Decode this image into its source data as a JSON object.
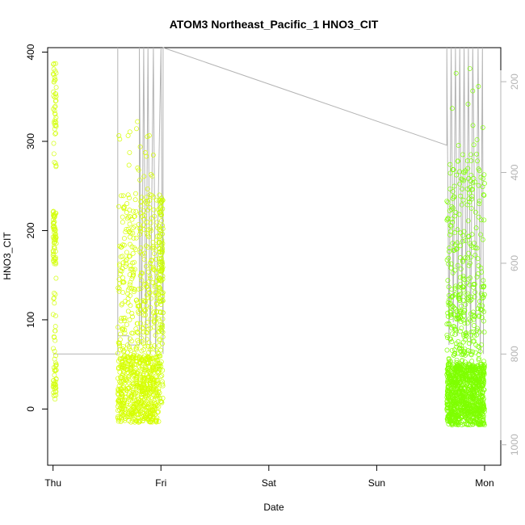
{
  "chart_data": {
    "type": "scatter",
    "title": "ATOM3 Northeast_Pacific_1 HNO3_CIT",
    "xlabel": "Date",
    "ylabel": "HNO3_CIT",
    "x_ticks": [
      "Thu",
      "Fri",
      "Sat",
      "Sun",
      "Mon"
    ],
    "x_range_days": [
      -0.05,
      4.15
    ],
    "ylim": [
      -63,
      405
    ],
    "y_ticks": [
      0,
      100,
      200,
      300,
      400
    ],
    "y2_ticks": [
      200,
      400,
      600,
      800,
      1000
    ],
    "y2lim": [
      125,
      1045
    ],
    "grid": false,
    "colors": {
      "early": "#ccff00",
      "late": "#7fff00",
      "pressure_line": "#b4b4b4",
      "axes": "#000000"
    },
    "clusters": [
      {
        "name": "",
        "x_start": 0.0,
        "x_end": 0.03,
        "color": "#d4ff10",
        "n": 160,
        "bands": [
          {
            "lo": 160,
            "hi": 222,
            "w": 0.4
          },
          {
            "lo": 270,
            "hi": 390,
            "w": 0.25
          },
          {
            "lo": 10,
            "hi": 60,
            "w": 0.2
          },
          {
            "lo": 60,
            "hi": 150,
            "w": 0.15
          }
        ]
      },
      {
        "name": "",
        "x_start": 0.6,
        "x_end": 0.98,
        "color": "#d6ff00",
        "n": 900,
        "bands": [
          {
            "lo": -15,
            "hi": 60,
            "w": 0.65
          },
          {
            "lo": 60,
            "hi": 150,
            "w": 0.2
          },
          {
            "lo": 150,
            "hi": 240,
            "w": 0.12
          },
          {
            "lo": 240,
            "hi": 325,
            "w": 0.03
          }
        ]
      },
      {
        "name": "",
        "x_start": 0.98,
        "x_end": 1.02,
        "color": "#ccff00",
        "n": 140,
        "bands": [
          {
            "lo": 150,
            "hi": 240,
            "w": 0.5
          },
          {
            "lo": 0,
            "hi": 150,
            "w": 0.5
          }
        ]
      },
      {
        "name": "",
        "x_start": 3.65,
        "x_end": 4.0,
        "color": "#7fff00",
        "n": 1300,
        "bands": [
          {
            "lo": -18,
            "hi": 50,
            "w": 0.7
          },
          {
            "lo": 50,
            "hi": 140,
            "w": 0.18
          },
          {
            "lo": 140,
            "hi": 280,
            "w": 0.1
          },
          {
            "lo": 280,
            "hi": 390,
            "w": 0.02
          }
        ]
      }
    ],
    "pressure_trace": [
      [
        0.0,
        800
      ],
      [
        0.6,
        800
      ],
      [
        0.6,
        125
      ],
      [
        0.6,
        760
      ],
      [
        0.7,
        760
      ],
      [
        0.7,
        780
      ],
      [
        0.8,
        780
      ],
      [
        0.8,
        125
      ],
      [
        0.82,
        780
      ],
      [
        0.84,
        125
      ],
      [
        0.86,
        780
      ],
      [
        0.88,
        125
      ],
      [
        0.9,
        800
      ],
      [
        0.93,
        125
      ],
      [
        0.95,
        800
      ],
      [
        1.0,
        125
      ],
      [
        1.02,
        800
      ],
      [
        1.02,
        125
      ],
      [
        3.65,
        340
      ],
      [
        3.65,
        125
      ],
      [
        3.67,
        780
      ],
      [
        3.69,
        125
      ],
      [
        3.71,
        730
      ],
      [
        3.73,
        125
      ],
      [
        3.75,
        760
      ],
      [
        3.77,
        125
      ],
      [
        3.79,
        700
      ],
      [
        3.81,
        125
      ],
      [
        3.83,
        760
      ],
      [
        3.85,
        125
      ],
      [
        3.87,
        800
      ],
      [
        3.89,
        125
      ],
      [
        3.92,
        760
      ],
      [
        3.94,
        125
      ],
      [
        3.96,
        800
      ],
      [
        3.98,
        125
      ],
      [
        3.99,
        800
      ]
    ]
  }
}
